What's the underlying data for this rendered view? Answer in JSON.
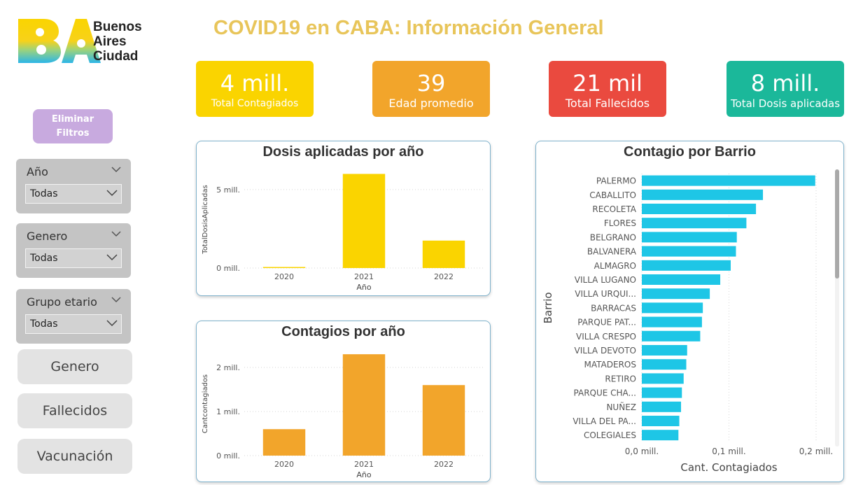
{
  "header": {
    "title": "COVID19 en CABA: Información General",
    "logo_line1": "Buenos",
    "logo_line2": "Aires",
    "logo_line3": "Ciudad"
  },
  "kpis": [
    {
      "value": "4 mill.",
      "label": "Total Contagiados",
      "color": "#fad400"
    },
    {
      "value": "39",
      "label": "Edad promedio",
      "color": "#f2a52b"
    },
    {
      "value": "21 mil",
      "label": "Total Fallecidos",
      "color": "#ea4a3f"
    },
    {
      "value": "8 mill.",
      "label": "Total Dosis aplicadas",
      "color": "#1bb89a"
    }
  ],
  "filters": {
    "clear_label_1": "Eliminar",
    "clear_label_2": "Filtros",
    "slicers": [
      {
        "title": "Año",
        "value": "Todas"
      },
      {
        "title": "Genero",
        "value": "Todas"
      },
      {
        "title": "Grupo etario",
        "value": "Todas"
      }
    ]
  },
  "nav": {
    "genero": "Genero",
    "fallecidos": "Fallecidos",
    "vacunacion": "Vacunación"
  },
  "chart_data": [
    {
      "type": "bar",
      "title": "Dosis aplicadas por año",
      "xlabel": "Año",
      "ylabel": "TotalDosisAplicadas",
      "categories": [
        "2020",
        "2021",
        "2022"
      ],
      "values": [
        0.05,
        6.0,
        1.75
      ],
      "value_unit": "mill.",
      "yticks": [
        "0 mill.",
        "5 mill."
      ],
      "ytick_values": [
        0,
        5
      ],
      "ylim": [
        0,
        6.2
      ],
      "color": "#fad400",
      "grid": true
    },
    {
      "type": "bar",
      "title": "Contagios por año",
      "xlabel": "Año",
      "ylabel": "Cantcontagiados",
      "categories": [
        "2020",
        "2021",
        "2022"
      ],
      "values": [
        0.6,
        2.3,
        1.6
      ],
      "value_unit": "mill.",
      "yticks": [
        "0 mill.",
        "1 mill.",
        "2 mill."
      ],
      "ytick_values": [
        0,
        1,
        2
      ],
      "ylim": [
        0,
        2.35
      ],
      "color": "#f2a52b",
      "grid": true
    },
    {
      "type": "bar",
      "orientation": "horizontal",
      "title": "Contagio por Barrio",
      "xlabel": "Cant. Contagiados",
      "ylabel": "Barrio",
      "categories": [
        "PALERMO",
        "CABALLITO",
        "RECOLETA",
        "FLORES",
        "BELGRANO",
        "BALVANERA",
        "ALMAGRO",
        "VILLA LUGANO",
        "VILLA URQUI...",
        "BARRACAS",
        "PARQUE PAT...",
        "VILLA CRESPO",
        "VILLA DEVOTO",
        "MATADEROS",
        "RETIRO",
        "PARQUE CHA...",
        "NUÑEZ",
        "VILLA DEL PA...",
        "COLEGIALES"
      ],
      "values": [
        0.199,
        0.139,
        0.131,
        0.12,
        0.109,
        0.108,
        0.102,
        0.09,
        0.078,
        0.07,
        0.069,
        0.067,
        0.052,
        0.051,
        0.048,
        0.046,
        0.045,
        0.043,
        0.042
      ],
      "value_unit": "mill.",
      "xticks": [
        "0,0 mill.",
        "0,1 mill.",
        "0,2 mill."
      ],
      "xtick_values": [
        0,
        0.1,
        0.2
      ],
      "xlim": [
        0,
        0.2
      ],
      "color": "#1ec6e6",
      "grid": true
    }
  ]
}
